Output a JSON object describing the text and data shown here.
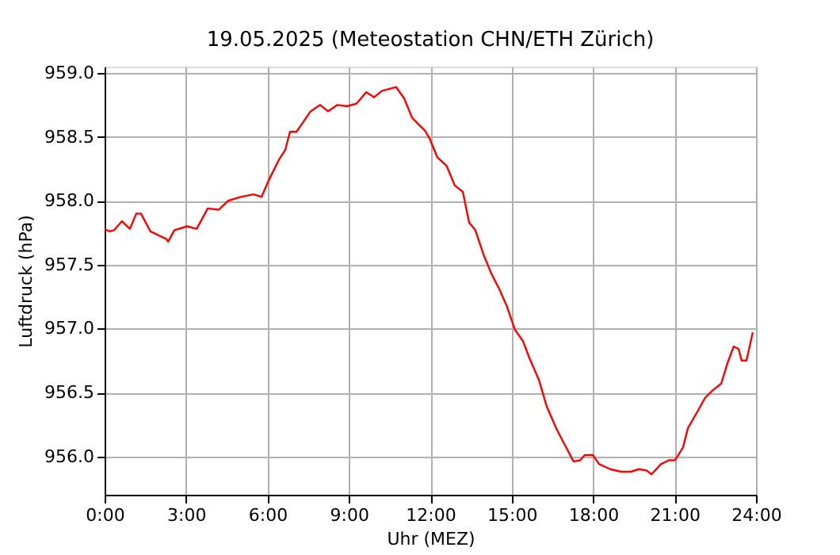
{
  "chart_data": {
    "type": "line",
    "title": "19.05.2025  (Meteostation CHN/ETH Zürich)",
    "xlabel": "Uhr (MEZ)",
    "ylabel": "Luftdruck (hPa)",
    "x": [
      0,
      0.18,
      0.35,
      0.64,
      0.93,
      1.17,
      1.34,
      1.69,
      2.28,
      2.34,
      2.57,
      3.04,
      3.39,
      3.8,
      4.2,
      4.55,
      5.02,
      5.49,
      5.78,
      6.07,
      6.42,
      6.66,
      6.83,
      7.07,
      7.3,
      7.59,
      7.94,
      8.23,
      8.58,
      8.93,
      9.28,
      9.64,
      9.93,
      10.22,
      10.74,
      11.04,
      11.33,
      11.56,
      11.8,
      11.97,
      12.26,
      12.61,
      12.9,
      13.2,
      13.43,
      13.66,
      13.96,
      14.25,
      14.54,
      14.83,
      15.12,
      15.42,
      15.65,
      16.0,
      16.29,
      16.64,
      16.93,
      17.28,
      17.52,
      17.69,
      17.99,
      18.22,
      18.63,
      19.04,
      19.39,
      19.68,
      19.97,
      20.15,
      20.5,
      20.79,
      21.02,
      21.31,
      21.49,
      21.84,
      22.13,
      22.42,
      22.72,
      22.95,
      23.18,
      23.36,
      23.47,
      23.65,
      23.88
    ],
    "series": [
      {
        "color": "#ff0000",
        "values": [
          957.78,
          957.76,
          957.77,
          957.84,
          957.78,
          957.9,
          957.9,
          957.76,
          957.7,
          957.68,
          957.77,
          957.8,
          957.78,
          957.94,
          957.93,
          958.0,
          958.03,
          958.05,
          958.03,
          958.17,
          958.32,
          958.4,
          958.54,
          958.54,
          958.61,
          958.7,
          958.75,
          958.7,
          958.75,
          958.74,
          958.76,
          958.85,
          958.81,
          958.86,
          958.89,
          958.8,
          958.65,
          958.6,
          958.55,
          958.49,
          958.34,
          958.27,
          958.12,
          958.07,
          957.83,
          957.77,
          957.58,
          957.43,
          957.31,
          957.17,
          956.99,
          956.9,
          956.77,
          956.6,
          956.39,
          956.22,
          956.1,
          955.96,
          955.97,
          956.01,
          956.01,
          955.94,
          955.9,
          955.88,
          955.88,
          955.9,
          955.89,
          955.86,
          955.94,
          955.97,
          955.97,
          956.07,
          956.22,
          956.35,
          956.46,
          956.52,
          956.57,
          956.73,
          956.86,
          956.84,
          956.75,
          956.75,
          956.97
        ]
      }
    ],
    "xlim": [
      0,
      24
    ],
    "xticks": [
      {
        "value": 0,
        "label": "0:00"
      },
      {
        "value": 3,
        "label": "3:00"
      },
      {
        "value": 6,
        "label": "6:00"
      },
      {
        "value": 9,
        "label": "9:00"
      },
      {
        "value": 12,
        "label": "12:00"
      },
      {
        "value": 15,
        "label": "15:00"
      },
      {
        "value": 18,
        "label": "18:00"
      },
      {
        "value": 21,
        "label": "21:00"
      },
      {
        "value": 24,
        "label": "24:00"
      }
    ],
    "ylim": [
      955.7,
      959.05
    ],
    "yticks": [
      {
        "value": 956,
        "label": "956.0"
      },
      {
        "value": 956.5,
        "label": "956.5"
      },
      {
        "value": 957,
        "label": "957.0"
      },
      {
        "value": 957.5,
        "label": "957.5"
      },
      {
        "value": 958,
        "label": "958.0"
      },
      {
        "value": 958.5,
        "label": "958.5"
      },
      {
        "value": 959,
        "label": "959.0"
      }
    ],
    "grid": true,
    "line_style": "solid"
  }
}
